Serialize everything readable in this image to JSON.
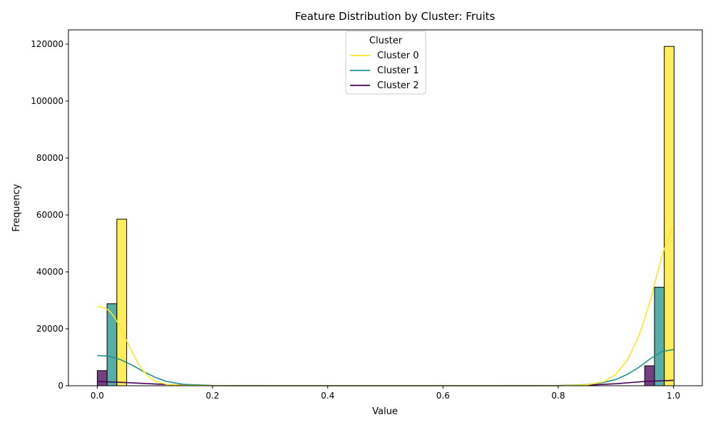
{
  "chart_data": {
    "type": "bar",
    "title": "Feature Distribution by Cluster: Fruits",
    "xlabel": "Value",
    "ylabel": "Frequency",
    "xlim": [
      -0.05,
      1.05
    ],
    "ylim": [
      0,
      125000
    ],
    "xticks": [
      0.0,
      0.2,
      0.4,
      0.6,
      0.8,
      1.0
    ],
    "xtick_labels": [
      "0.0",
      "0.2",
      "0.4",
      "0.6",
      "0.8",
      "1.0"
    ],
    "yticks": [
      0,
      20000,
      40000,
      60000,
      80000,
      100000,
      120000
    ],
    "ytick_labels": [
      "0",
      "20000",
      "40000",
      "60000",
      "80000",
      "100000",
      "120000"
    ],
    "bin_width": 0.017,
    "grid": false,
    "legend": {
      "title": "Cluster",
      "placement": "upper center"
    },
    "series": [
      {
        "name": "Cluster 2",
        "color": "#440154",
        "bars": [
          {
            "x0": 0.0,
            "value": 5300
          },
          {
            "x0": 0.95,
            "value": 7000
          }
        ],
        "kde": [
          [
            0.0,
            1500
          ],
          [
            0.05,
            1100
          ],
          [
            0.1,
            600
          ],
          [
            0.15,
            200
          ],
          [
            0.2,
            50
          ],
          [
            0.3,
            0
          ],
          [
            0.7,
            0
          ],
          [
            0.8,
            40
          ],
          [
            0.85,
            200
          ],
          [
            0.9,
            700
          ],
          [
            0.95,
            1500
          ],
          [
            1.0,
            1900
          ]
        ]
      },
      {
        "name": "Cluster 1",
        "color": "#21918c",
        "bars": [
          {
            "x0": 0.017,
            "value": 28800
          },
          {
            "x0": 0.967,
            "value": 34600
          }
        ],
        "kde": [
          [
            0.0,
            10600
          ],
          [
            0.02,
            10400
          ],
          [
            0.04,
            9200
          ],
          [
            0.06,
            7300
          ],
          [
            0.08,
            5000
          ],
          [
            0.1,
            3000
          ],
          [
            0.12,
            1500
          ],
          [
            0.15,
            500
          ],
          [
            0.2,
            80
          ],
          [
            0.3,
            0
          ],
          [
            0.7,
            0
          ],
          [
            0.8,
            60
          ],
          [
            0.85,
            400
          ],
          [
            0.88,
            1200
          ],
          [
            0.9,
            2200
          ],
          [
            0.92,
            4000
          ],
          [
            0.94,
            6500
          ],
          [
            0.96,
            9500
          ],
          [
            0.98,
            12000
          ],
          [
            1.0,
            12700
          ]
        ]
      },
      {
        "name": "Cluster 0",
        "color": "#fde725",
        "bars": [
          {
            "x0": 0.034,
            "value": 58500
          },
          {
            "x0": 0.984,
            "value": 119200
          }
        ],
        "kde": [
          [
            0.0,
            27800
          ],
          [
            0.01,
            27600
          ],
          [
            0.02,
            26500
          ],
          [
            0.03,
            24000
          ],
          [
            0.04,
            20500
          ],
          [
            0.05,
            16300
          ],
          [
            0.06,
            12000
          ],
          [
            0.07,
            8200
          ],
          [
            0.08,
            5200
          ],
          [
            0.09,
            3000
          ],
          [
            0.1,
            1600
          ],
          [
            0.12,
            500
          ],
          [
            0.15,
            100
          ],
          [
            0.2,
            0
          ],
          [
            0.8,
            0
          ],
          [
            0.85,
            300
          ],
          [
            0.88,
            1500
          ],
          [
            0.9,
            4000
          ],
          [
            0.92,
            9000
          ],
          [
            0.94,
            17500
          ],
          [
            0.96,
            30000
          ],
          [
            0.97,
            38000
          ],
          [
            0.98,
            45500
          ],
          [
            0.99,
            51500
          ],
          [
            1.0,
            56500
          ]
        ]
      }
    ]
  }
}
